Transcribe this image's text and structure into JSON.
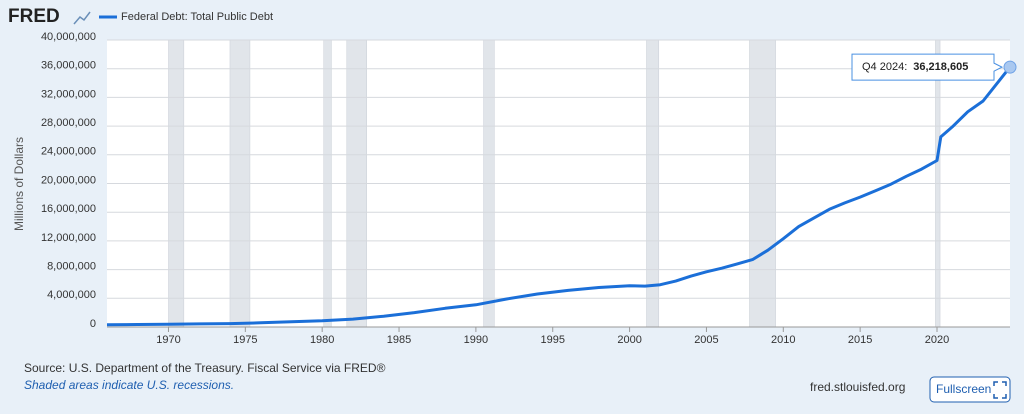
{
  "brand": "FRED",
  "chart_data": {
    "type": "line",
    "series": [
      {
        "name": "Federal Debt: Total Public Debt",
        "color": "#1b6fd8",
        "x": [
          1966,
          1968,
          1970,
          1972,
          1974,
          1976,
          1978,
          1980,
          1982,
          1984,
          1986,
          1988,
          1990,
          1992,
          1994,
          1996,
          1998,
          2000,
          2001,
          2002,
          2003,
          2004,
          2005,
          2006,
          2007,
          2008,
          2009,
          2010,
          2011,
          2012,
          2013,
          2014,
          2015,
          2016,
          2017,
          2018,
          2019,
          2020,
          2020.25,
          2021,
          2022,
          2023,
          2024,
          2024.75
        ],
        "values": [
          320000,
          350000,
          380000,
          430000,
          470000,
          580000,
          720000,
          860000,
          1100000,
          1500000,
          2000000,
          2600000,
          3100000,
          3900000,
          4600000,
          5100000,
          5500000,
          5750000,
          5700000,
          5900000,
          6400000,
          7100000,
          7700000,
          8200000,
          8800000,
          9400000,
          10700000,
          12300000,
          14000000,
          15200000,
          16400000,
          17300000,
          18100000,
          19000000,
          19900000,
          21000000,
          22000000,
          23200000,
          26500000,
          27900000,
          30000000,
          31500000,
          34200000,
          36218605
        ]
      }
    ],
    "recessions": [
      [
        1970.0,
        1971.0
      ],
      [
        1974.0,
        1975.3
      ],
      [
        1980.1,
        1980.6
      ],
      [
        1981.6,
        1982.9
      ],
      [
        1990.5,
        1991.2
      ],
      [
        2001.1,
        2001.9
      ],
      [
        2007.8,
        2009.5
      ],
      [
        2019.9,
        2020.2
      ]
    ],
    "xlim": [
      1966,
      2024.75
    ],
    "xticks": [
      1970,
      1975,
      1980,
      1985,
      1990,
      1995,
      2000,
      2005,
      2010,
      2015,
      2020
    ],
    "ylim": [
      0,
      40000000
    ],
    "yticks": [
      0,
      {
        "value": 4000000,
        "label": "4,000,000"
      },
      {
        "value": 8000000,
        "label": "8,000,000"
      },
      {
        "value": 12000000,
        "label": "12,000,000"
      },
      {
        "value": 16000000,
        "label": "16,000,000"
      },
      {
        "value": 20000000,
        "label": "20,000,000"
      },
      {
        "value": 24000000,
        "label": "24,000,000"
      },
      {
        "value": 28000000,
        "label": "28,000,000"
      },
      {
        "value": 32000000,
        "label": "32,000,000"
      },
      {
        "value": 36000000,
        "label": "36,000,000"
      },
      {
        "value": 40000000,
        "label": "40,000,000"
      }
    ],
    "ylabel": "Millions of Dollars",
    "grid": true,
    "tooltip": {
      "label": "Q4 2024:",
      "value_label": "36,218,605"
    }
  },
  "footer": {
    "source": "Source: U.S. Department of the Treasury. Fiscal Service via FRED®",
    "note": "Shaded areas indicate U.S. recessions.",
    "site": "fred.stlouisfed.org",
    "button": "Fullscreen"
  }
}
